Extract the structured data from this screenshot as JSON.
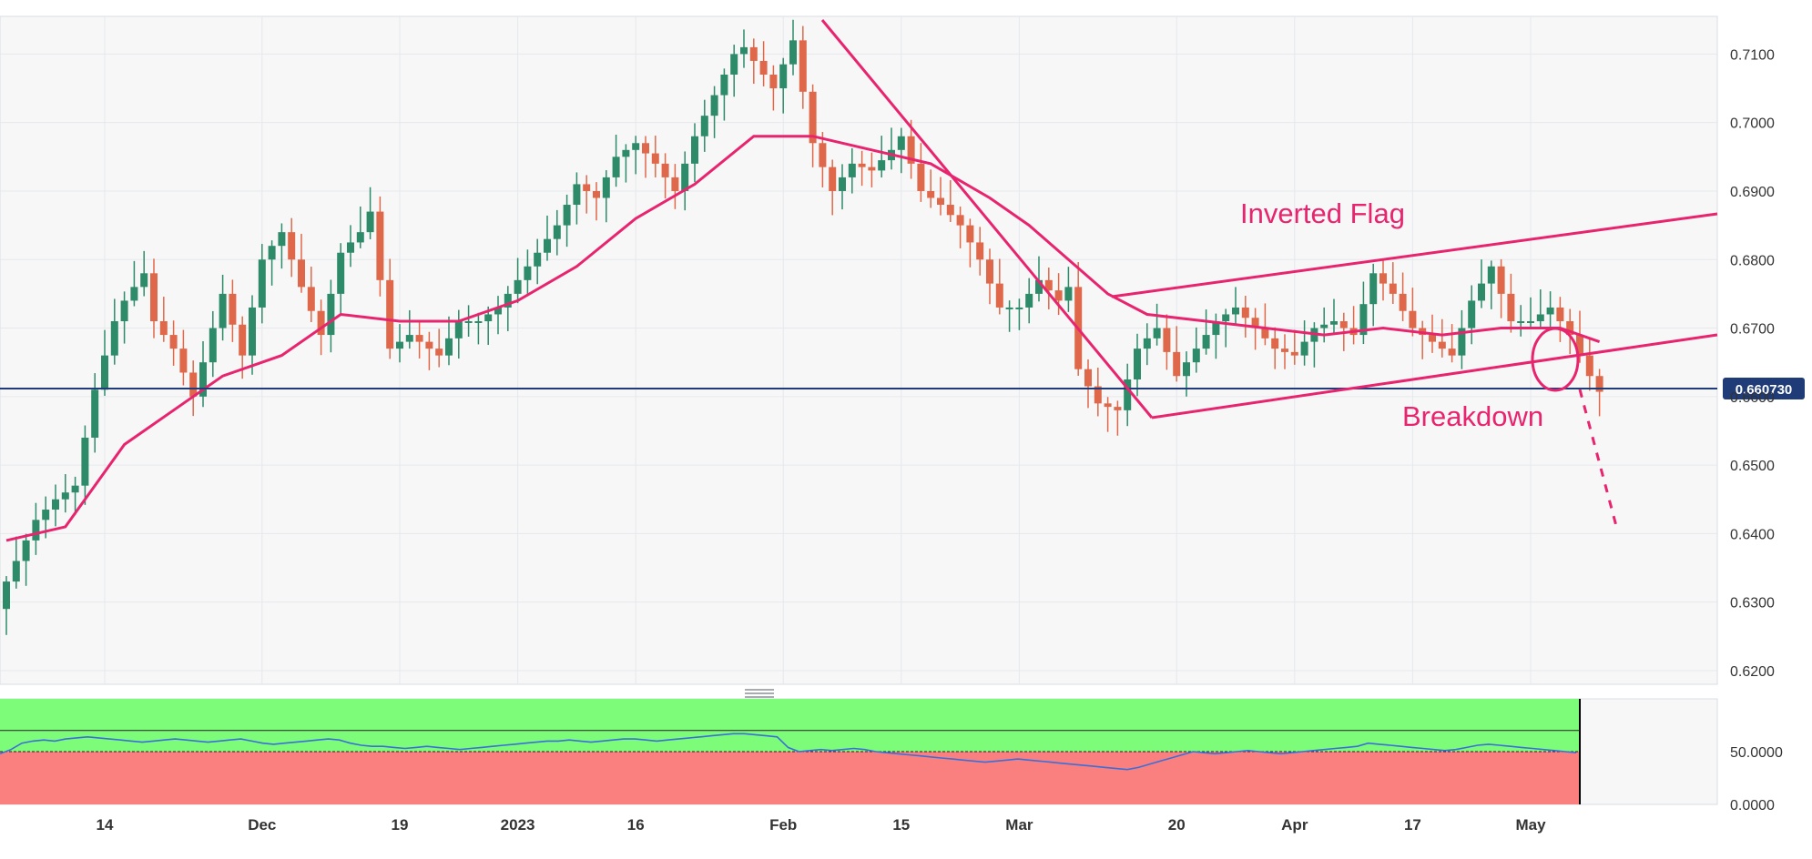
{
  "chart_data": [
    {
      "type": "candlestick",
      "panel": "price",
      "colors": {
        "bull": "#2e8b6a",
        "bear": "#e0684a",
        "ma": "#e8246e",
        "annotation": "#e8246e",
        "price_line": "#1f3c78"
      },
      "y_ticks": [
        "0.6200",
        "0.6300",
        "0.6400",
        "0.6500",
        "0.6600",
        "0.6700",
        "0.6800",
        "0.6900",
        "0.7000",
        "0.7100"
      ],
      "ylim": [
        0.618,
        0.7155
      ],
      "current_price": {
        "value": 0.66073,
        "label": "0.660730"
      },
      "annotations": {
        "flag_label": "Inverted Flag",
        "breakdown_label": "Breakdown"
      },
      "close_anchors": [
        [
          0,
          0.633
        ],
        [
          3,
          0.642
        ],
        [
          5,
          0.645
        ],
        [
          7,
          0.647
        ],
        [
          9,
          0.661
        ],
        [
          11,
          0.671
        ],
        [
          12,
          0.674
        ],
        [
          14,
          0.678
        ],
        [
          15,
          0.671
        ],
        [
          17,
          0.667
        ],
        [
          19,
          0.66
        ],
        [
          22,
          0.675
        ],
        [
          24,
          0.666
        ],
        [
          26,
          0.68
        ],
        [
          28,
          0.684
        ],
        [
          30,
          0.676
        ],
        [
          32,
          0.669
        ],
        [
          34,
          0.681
        ],
        [
          36,
          0.684
        ],
        [
          37,
          0.687
        ],
        [
          39,
          0.667
        ],
        [
          41,
          0.669
        ],
        [
          44,
          0.666
        ],
        [
          46,
          0.671
        ],
        [
          48,
          0.671
        ],
        [
          50,
          0.673
        ],
        [
          52,
          0.677
        ],
        [
          54,
          0.681
        ],
        [
          56,
          0.685
        ],
        [
          58,
          0.691
        ],
        [
          60,
          0.689
        ],
        [
          62,
          0.695
        ],
        [
          64,
          0.697
        ],
        [
          66,
          0.694
        ],
        [
          68,
          0.69
        ],
        [
          70,
          0.698
        ],
        [
          72,
          0.704
        ],
        [
          74,
          0.71
        ],
        [
          75,
          0.711
        ],
        [
          77,
          0.707
        ],
        [
          78,
          0.705
        ],
        [
          80,
          0.712
        ],
        [
          82,
          0.697
        ],
        [
          84,
          0.69
        ],
        [
          86,
          0.694
        ],
        [
          88,
          0.693
        ],
        [
          90,
          0.696
        ],
        [
          91,
          0.698
        ],
        [
          93,
          0.69
        ],
        [
          95,
          0.688
        ],
        [
          97,
          0.685
        ],
        [
          99,
          0.68
        ],
        [
          101,
          0.673
        ],
        [
          103,
          0.673
        ],
        [
          105,
          0.677
        ],
        [
          107,
          0.674
        ],
        [
          108,
          0.676
        ],
        [
          109,
          0.664
        ],
        [
          111,
          0.659
        ],
        [
          113,
          0.658
        ],
        [
          115,
          0.667
        ],
        [
          117,
          0.67
        ],
        [
          119,
          0.663
        ],
        [
          121,
          0.667
        ],
        [
          123,
          0.671
        ],
        [
          125,
          0.673
        ],
        [
          127,
          0.67
        ],
        [
          129,
          0.667
        ],
        [
          131,
          0.666
        ],
        [
          133,
          0.67
        ],
        [
          135,
          0.671
        ],
        [
          137,
          0.669
        ],
        [
          139,
          0.678
        ],
        [
          141,
          0.675
        ],
        [
          143,
          0.67
        ],
        [
          145,
          0.668
        ],
        [
          147,
          0.666
        ],
        [
          149,
          0.674
        ],
        [
          151,
          0.679
        ],
        [
          153,
          0.671
        ],
        [
          155,
          0.671
        ],
        [
          157,
          0.673
        ],
        [
          159,
          0.669
        ],
        [
          161,
          0.663
        ],
        [
          162,
          0.6607
        ]
      ],
      "moving_average_anchors": [
        [
          0,
          0.639
        ],
        [
          6,
          0.641
        ],
        [
          12,
          0.653
        ],
        [
          18,
          0.659
        ],
        [
          22,
          0.663
        ],
        [
          28,
          0.666
        ],
        [
          34,
          0.672
        ],
        [
          40,
          0.671
        ],
        [
          46,
          0.671
        ],
        [
          52,
          0.674
        ],
        [
          58,
          0.679
        ],
        [
          64,
          0.686
        ],
        [
          70,
          0.691
        ],
        [
          76,
          0.698
        ],
        [
          82,
          0.698
        ],
        [
          88,
          0.696
        ],
        [
          94,
          0.694
        ],
        [
          100,
          0.689
        ],
        [
          104,
          0.685
        ],
        [
          108,
          0.68
        ],
        [
          112,
          0.675
        ],
        [
          116,
          0.672
        ],
        [
          122,
          0.671
        ],
        [
          128,
          0.67
        ],
        [
          134,
          0.669
        ],
        [
          140,
          0.67
        ],
        [
          146,
          0.669
        ],
        [
          152,
          0.67
        ],
        [
          158,
          0.67
        ],
        [
          162,
          0.668
        ]
      ],
      "x_tick_bars": [
        {
          "label": "14",
          "bar": 10
        },
        {
          "label": "Dec",
          "bar": 26
        },
        {
          "label": "19",
          "bar": 40
        },
        {
          "label": "2023",
          "bar": 52
        },
        {
          "label": "16",
          "bar": 64
        },
        {
          "label": "Feb",
          "bar": 79
        },
        {
          "label": "15",
          "bar": 91
        },
        {
          "label": "Mar",
          "bar": 103
        },
        {
          "label": "20",
          "bar": 119
        },
        {
          "label": "Apr",
          "bar": 131
        },
        {
          "label": "17",
          "bar": 143
        },
        {
          "label": "May",
          "bar": 155
        }
      ]
    },
    {
      "type": "line",
      "panel": "oscillator",
      "colors": {
        "line": "#3a6fd8",
        "upper_zone": "#7dfc7a",
        "lower_zone": "#fa8080",
        "annotation": "#e8246e"
      },
      "y_ticks": [
        "50.0000",
        "0.0000"
      ],
      "ylim": [
        0,
        100
      ],
      "levels": [
        50,
        70
      ],
      "values": [
        48,
        52,
        58,
        60,
        61,
        60,
        62,
        63,
        64,
        63,
        62,
        61,
        60,
        59,
        60,
        61,
        62,
        61,
        60,
        59,
        60,
        61,
        62,
        60,
        58,
        57,
        58,
        59,
        60,
        61,
        62,
        61,
        58,
        56,
        55,
        55,
        54,
        53,
        54,
        55,
        54,
        53,
        52,
        53,
        54,
        55,
        56,
        57,
        58,
        59,
        60,
        60,
        61,
        60,
        59,
        60,
        61,
        62,
        62,
        61,
        60,
        61,
        62,
        63,
        64,
        65,
        66,
        67,
        67,
        66,
        65,
        64,
        54,
        50,
        51,
        52,
        51,
        52,
        53,
        52,
        50,
        49,
        48,
        47,
        46,
        45,
        44,
        43,
        42,
        41,
        40,
        41,
        42,
        43,
        42,
        41,
        40,
        39,
        38,
        37,
        36,
        35,
        34,
        33,
        35,
        38,
        41,
        44,
        47,
        50,
        49,
        48,
        49,
        50,
        51,
        50,
        49,
        48,
        49,
        50,
        51,
        52,
        53,
        54,
        55,
        58,
        57,
        56,
        55,
        54,
        53,
        52,
        51,
        52,
        54,
        56,
        57,
        56,
        55,
        54,
        53,
        52,
        51,
        50,
        49
      ]
    }
  ]
}
